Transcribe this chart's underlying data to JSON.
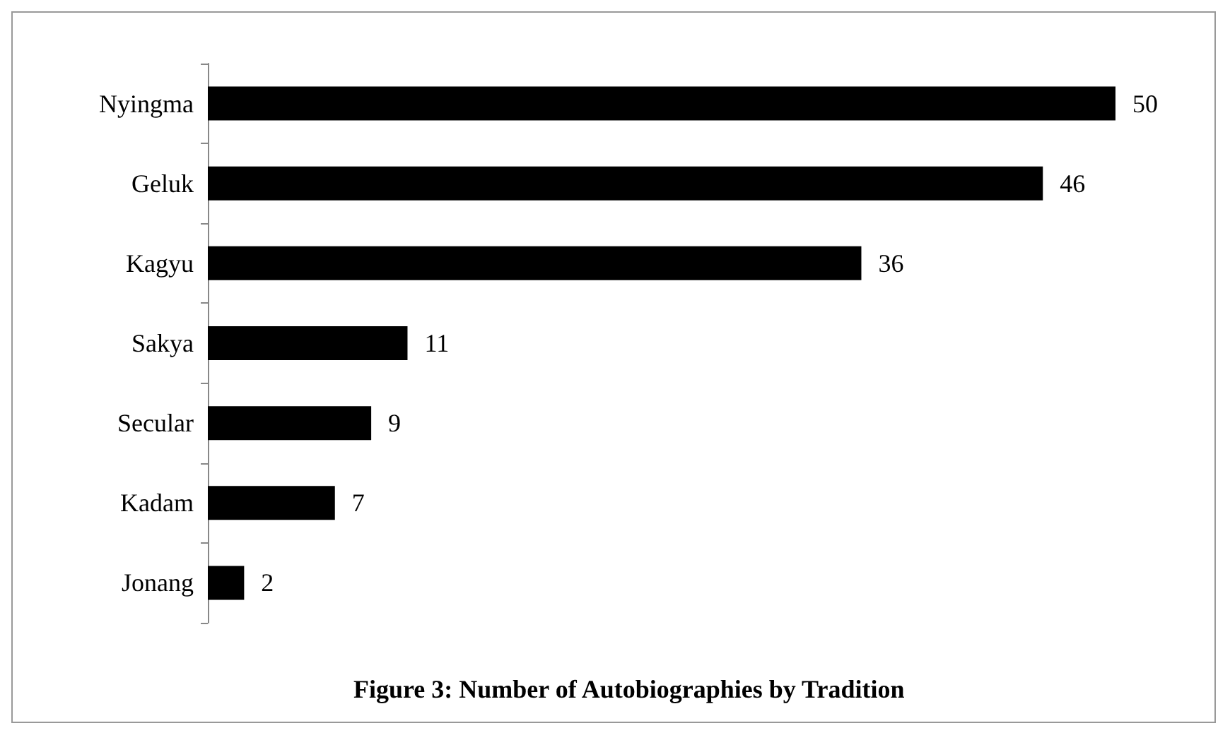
{
  "chart_data": {
    "type": "bar",
    "orientation": "horizontal",
    "title": "Figure 3: Number of Autobiographies by Tradition",
    "categories": [
      "Nyingma",
      "Geluk",
      "Kagyu",
      "Sakya",
      "Secular",
      "Kadam",
      "Jonang"
    ],
    "values": [
      50,
      46,
      36,
      11,
      9,
      7,
      2
    ],
    "color": "#000000",
    "data_labels": true
  }
}
